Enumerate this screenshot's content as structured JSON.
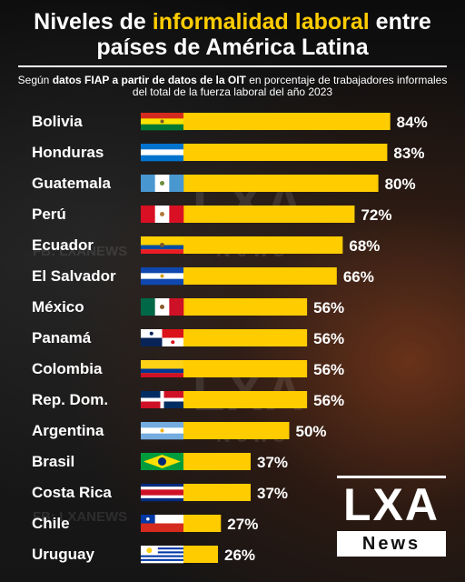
{
  "header": {
    "title_pre": "Niveles de ",
    "title_highlight": "informalidad laboral",
    "title_post": " entre",
    "title_line2": "países de América Latina",
    "subtitle_pre": "Según ",
    "subtitle_bold": "datos FIAP a partir de datos de la OIT",
    "subtitle_post": " en porcentaje de trabajadores informales del total de la fuerza laboral del año 2023"
  },
  "watermarks": {
    "fb_handle_1": "FB: LXANEWS",
    "fb_handle_2": "FB: LXANEWS",
    "lxa_1": "LXA",
    "news_1": "News",
    "lxa_2": "LXA",
    "news_2": "News"
  },
  "logo": {
    "lxa": "LXA",
    "news": "News"
  },
  "colors": {
    "bar": "#ffcc00",
    "highlight": "#ffcc00",
    "text": "#ffffff"
  },
  "chart_data": {
    "type": "bar",
    "orientation": "horizontal",
    "categories": [
      "Bolivia",
      "Honduras",
      "Guatemala",
      "Perú",
      "Ecuador",
      "El Salvador",
      "México",
      "Panamá",
      "Colombia",
      "Rep. Dom.",
      "Argentina",
      "Brasil",
      "Costa Rica",
      "Chile",
      "Uruguay"
    ],
    "values": [
      84,
      83,
      80,
      72,
      68,
      66,
      56,
      56,
      56,
      56,
      50,
      37,
      37,
      27,
      26
    ],
    "value_labels": [
      "84%",
      "83%",
      "80%",
      "72%",
      "68%",
      "66%",
      "56%",
      "56%",
      "56%",
      "56%",
      "50%",
      "37%",
      "37%",
      "27%",
      "26%"
    ],
    "flags": [
      "flag-bolivia",
      "flag-honduras",
      "flag-guatemala",
      "flag-peru",
      "flag-ecuador",
      "flag-el-salvador",
      "flag-mexico",
      "flag-panama",
      "flag-colombia",
      "flag-dominican-republic",
      "flag-argentina",
      "flag-brazil",
      "flag-costa-rica",
      "flag-chile",
      "flag-uruguay"
    ]
  }
}
